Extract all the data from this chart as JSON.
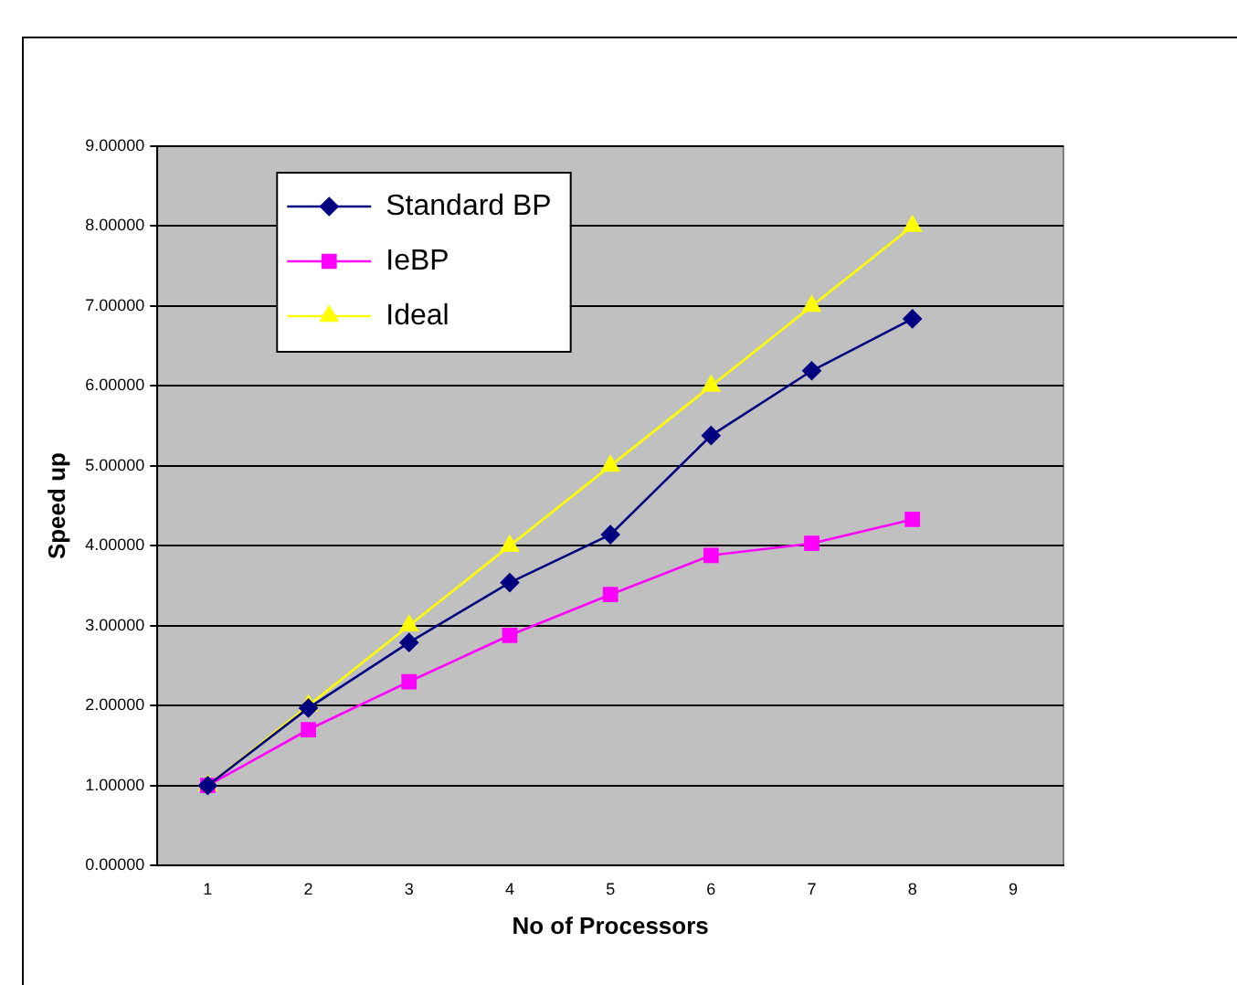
{
  "chart_data": {
    "type": "line",
    "xlabel": "No of Processors",
    "ylabel": "Speed up",
    "categories": [
      "1",
      "2",
      "3",
      "4",
      "5",
      "6",
      "7",
      "8",
      "9"
    ],
    "series": [
      {
        "name": "Standard BP",
        "color": "#000080",
        "marker": "diamond",
        "values": [
          1,
          1.97,
          2.79,
          3.54,
          4.14,
          5.38,
          6.19,
          6.84,
          null
        ]
      },
      {
        "name": "IeBP",
        "color": "#ff00ff",
        "marker": "square",
        "values": [
          1,
          1.7,
          2.3,
          2.88,
          3.39,
          3.88,
          4.03,
          4.33,
          null
        ]
      },
      {
        "name": "Ideal",
        "color": "#ffff00",
        "marker": "triangle",
        "values": [
          1,
          2,
          3,
          4,
          5,
          6,
          7,
          8,
          null
        ]
      }
    ],
    "ylim": [
      0,
      9
    ],
    "yticks": [
      {
        "value": 0,
        "label": "0.00000"
      },
      {
        "value": 1,
        "label": "1.00000"
      },
      {
        "value": 2,
        "label": "2.00000"
      },
      {
        "value": 3,
        "label": "3.00000"
      },
      {
        "value": 4,
        "label": "4.00000"
      },
      {
        "value": 5,
        "label": "5.00000"
      },
      {
        "value": 6,
        "label": "6.00000"
      },
      {
        "value": 7,
        "label": "7.00000"
      },
      {
        "value": 8,
        "label": "8.00000"
      },
      {
        "value": 9,
        "label": "9.00000"
      }
    ],
    "grid": "y",
    "legend": "top left",
    "line_style": "solid"
  }
}
